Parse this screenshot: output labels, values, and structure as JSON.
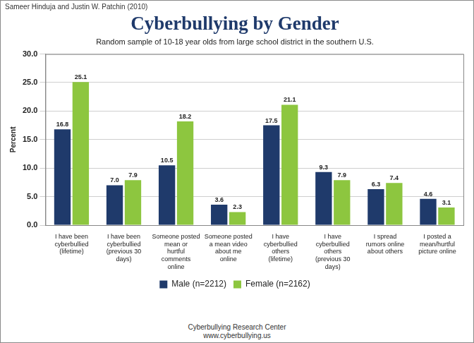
{
  "chart_data": {
    "type": "bar",
    "title": "Cyberbullying by Gender",
    "subtitle": "Random sample of 10-18 year olds from large school district in the southern U.S.",
    "credit": "Sameer Hinduja and Justin W. Patchin (2010)",
    "footer": [
      "Cyberbullying Research Center",
      "www.cyberbullying.us"
    ],
    "y_label": "Percent",
    "categories": [
      "I have been cyberbullied (lifetime)",
      "I have been cyberbullied (previous 30 days)",
      "Someone posted mean or hurtful comments online",
      "Someone posted a mean video about me online",
      "I have cyberbullied others (lifetime)",
      "I have cyberbullied others (previous 30 days)",
      "I spread rumors online about others",
      "I posted a mean/hurtful picture online"
    ],
    "series": [
      {
        "name": "Male (n=2212)",
        "color": "#1f3a6b",
        "values": [
          16.8,
          7.0,
          10.5,
          3.6,
          17.5,
          9.3,
          6.3,
          4.6
        ],
        "value_labels": [
          "16.8",
          "7.0",
          "10.5",
          "3.6",
          "17.5",
          "9.3",
          "6.3",
          "4.6"
        ]
      },
      {
        "name": "Female (n=2162)",
        "color": "#8dc63f",
        "values": [
          25.1,
          7.9,
          18.2,
          2.3,
          21.1,
          7.9,
          7.4,
          3.1
        ],
        "value_labels": [
          "25.1",
          "7.9",
          "18.2",
          "2.3",
          "21.1",
          "7.9",
          "7.4",
          "3.1"
        ]
      }
    ],
    "ylim": [
      0,
      30
    ],
    "yticks": [
      {
        "value": 0,
        "label": "0.0"
      },
      {
        "value": 5,
        "label": "5.0"
      },
      {
        "value": 10,
        "label": "10.0"
      },
      {
        "value": 15,
        "label": "15.0"
      },
      {
        "value": 20,
        "label": "20.0"
      },
      {
        "value": 25,
        "label": "25.0"
      },
      {
        "value": 30,
        "label": "30.0"
      }
    ],
    "grid": true,
    "legend": "bottom",
    "data_labels": true
  }
}
